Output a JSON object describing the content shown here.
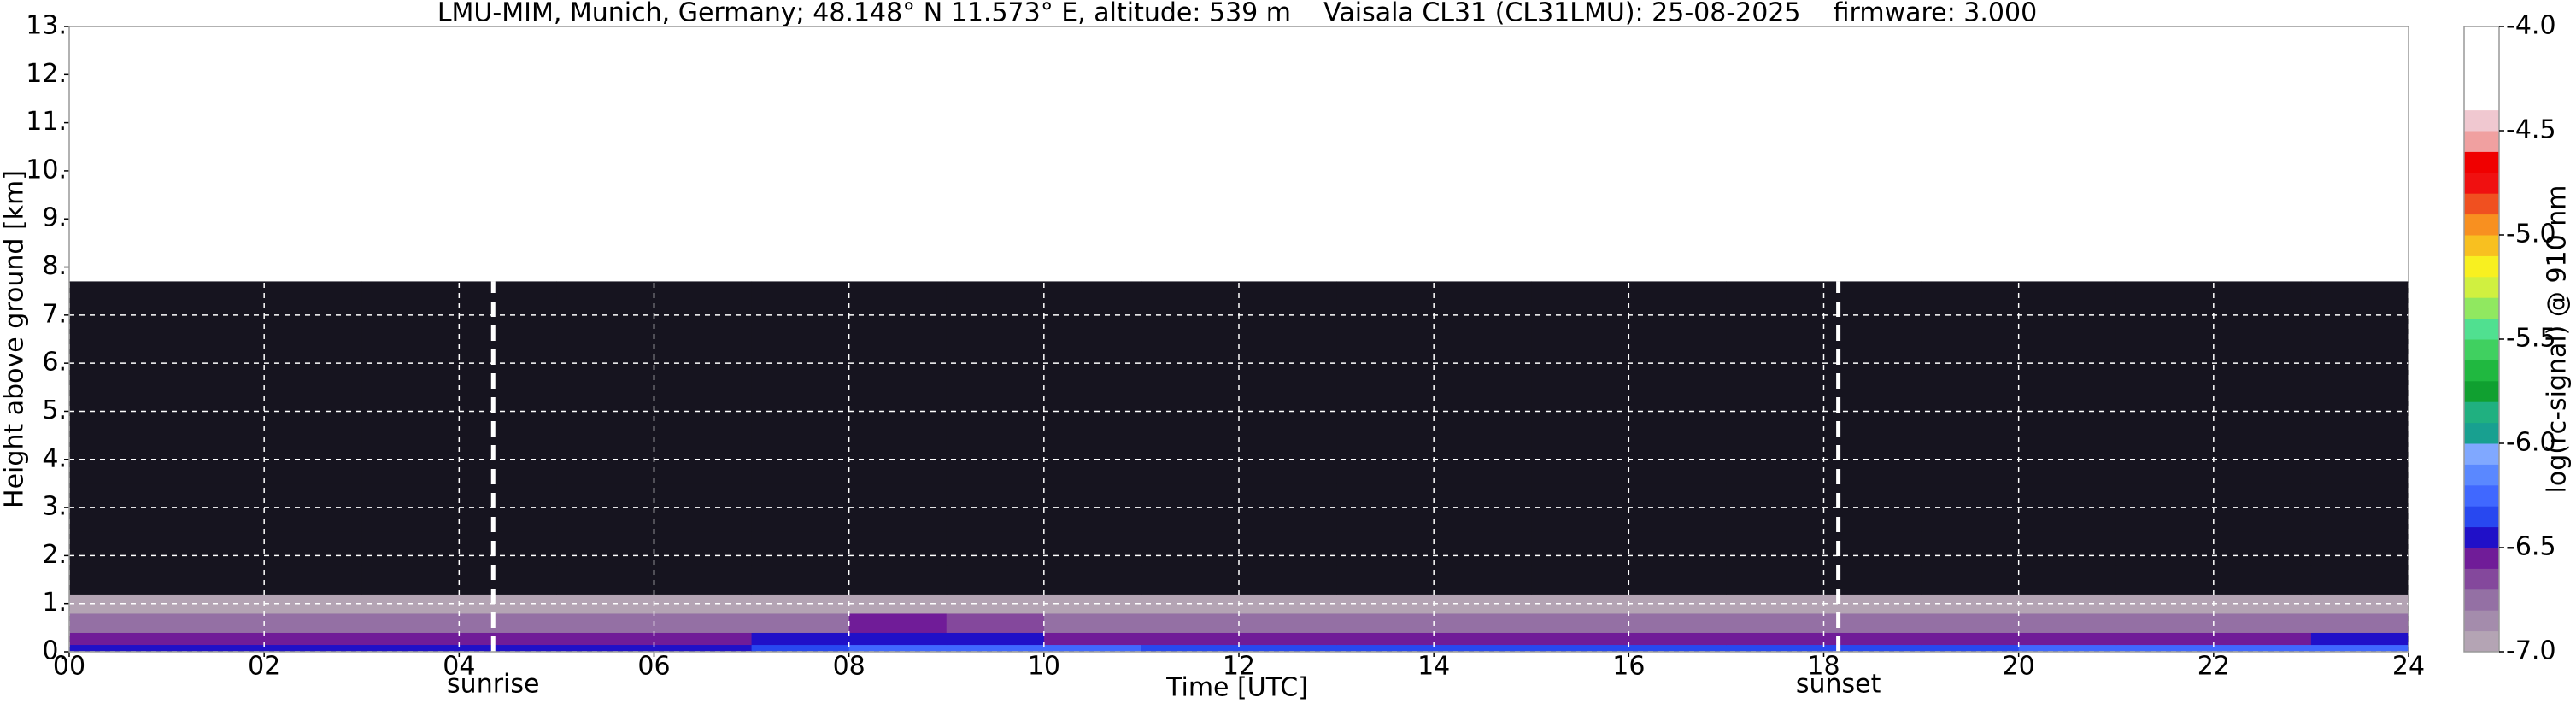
{
  "chart_data": {
    "type": "heatmap",
    "title": "LMU-MIM, Munich, Germany; 48.148° N 11.573° E, altitude: 539 m    Vaisala CL31 (CL31LMU): 25-08-2025    firmware: 3.000",
    "xlabel": "Time [UTC]",
    "ylabel": "Height above ground [km]",
    "colorbar_label": "log(rc-signal) @ 910 nm",
    "x_edges": [
      0,
      1,
      2,
      3,
      4,
      5,
      6,
      7,
      8,
      9,
      10,
      11,
      12,
      13,
      14,
      15,
      16,
      17,
      18,
      19,
      20,
      21,
      22,
      23,
      24
    ],
    "y_edges": [
      0,
      0.15,
      0.4,
      0.8,
      1.2,
      1.8,
      2.5,
      3.5,
      5,
      7.7
    ],
    "z": [
      [
        -6.4,
        -6.4,
        -6.4,
        -6.4,
        -6.4,
        -6.4,
        -6.4,
        -6.35,
        -6.2,
        -6.25,
        -6.3,
        -6.35,
        -6.35,
        -6.35,
        -6.35,
        -6.35,
        -6.35,
        -6.35,
        -6.35,
        -6.35,
        -6.3,
        -6.3,
        -6.3,
        -6.25
      ],
      [
        -6.55,
        -6.55,
        -6.55,
        -6.55,
        -6.55,
        -6.55,
        -6.55,
        -6.5,
        -6.45,
        -6.5,
        -6.55,
        -6.55,
        -6.55,
        -6.55,
        -6.55,
        -6.55,
        -6.55,
        -6.55,
        -6.55,
        -6.55,
        -6.55,
        -6.55,
        -6.55,
        -6.5
      ],
      [
        -6.7,
        -6.7,
        -6.7,
        -6.7,
        -6.7,
        -6.7,
        -6.7,
        -6.7,
        -6.6,
        -6.65,
        -6.7,
        -6.7,
        -6.7,
        -6.7,
        -6.7,
        -6.7,
        -6.7,
        -6.7,
        -6.7,
        -6.7,
        -6.7,
        -6.7,
        -6.7,
        -6.7
      ],
      [
        -6.95,
        -6.95,
        -6.95,
        -6.95,
        -6.95,
        -6.95,
        -6.95,
        -6.95,
        -6.9,
        -6.9,
        -6.9,
        -6.9,
        -6.9,
        -6.9,
        -6.9,
        -6.9,
        -6.9,
        -6.9,
        -6.95,
        -6.95,
        -6.95,
        -6.95,
        -6.95,
        -6.95
      ],
      [
        -7.05,
        -7.05,
        -7.05,
        -7.05,
        -7.05,
        -7.05,
        -7.05,
        -7.05,
        -7.05,
        -7.05,
        -7.05,
        -7.05,
        -7.05,
        -7.05,
        -7.05,
        -7.05,
        -7.05,
        -7.05,
        -7.05,
        -7.05,
        -7.05,
        -7.05,
        -7.05,
        -7.05
      ],
      [
        -7.1,
        -7.1,
        -7.1,
        -7.1,
        -7.1,
        -7.1,
        -7.1,
        -7.1,
        -7.1,
        -7.1,
        -7.1,
        -7.1,
        -7.1,
        -7.1,
        -7.1,
        -7.1,
        -7.1,
        -7.1,
        -7.1,
        -7.1,
        -7.1,
        -7.1,
        -7.1,
        -7.1
      ],
      [
        -7.1,
        -7.1,
        -7.1,
        -7.1,
        -7.1,
        -7.1,
        -7.1,
        -7.1,
        -7.1,
        -7.1,
        -7.1,
        -7.1,
        -7.1,
        -7.1,
        -7.1,
        -7.1,
        -7.1,
        -7.1,
        -7.1,
        -7.1,
        -7.1,
        -7.1,
        -7.1,
        -7.1
      ],
      [
        -7.1,
        -7.1,
        -7.1,
        -7.1,
        -7.1,
        -7.1,
        -7.1,
        -7.1,
        -7.1,
        -7.1,
        -7.1,
        -7.1,
        -7.1,
        -7.1,
        -7.1,
        -7.1,
        -7.1,
        -7.1,
        -7.1,
        -7.1,
        -7.1,
        -7.1,
        -7.1,
        -7.1
      ],
      [
        -7.1,
        -7.1,
        -7.1,
        -7.1,
        -7.1,
        -7.1,
        -7.1,
        -7.1,
        -7.1,
        -7.1,
        -7.1,
        -7.1,
        -7.1,
        -7.1,
        -7.1,
        -7.1,
        -7.1,
        -7.1,
        -7.1,
        -7.1,
        -7.1,
        -7.1,
        -7.1,
        -7.1
      ]
    ],
    "xlim": [
      0,
      24
    ],
    "ylim": [
      0,
      13
    ],
    "xticks": [
      {
        "value": 0,
        "label": "00"
      },
      {
        "value": 2,
        "label": "02"
      },
      {
        "value": 4,
        "label": "04"
      },
      {
        "value": 6,
        "label": "06"
      },
      {
        "value": 8,
        "label": "08"
      },
      10,
      12,
      14,
      16,
      18,
      20,
      22,
      24
    ],
    "yticks": [
      {
        "value": 0,
        "label": "0."
      },
      {
        "value": 1,
        "label": "1."
      },
      {
        "value": 2,
        "label": "2."
      },
      {
        "value": 3,
        "label": "3."
      },
      {
        "value": 4,
        "label": "4."
      },
      {
        "value": 5,
        "label": "5."
      },
      {
        "value": 6,
        "label": "6."
      },
      {
        "value": 7,
        "label": "7."
      },
      {
        "value": 8,
        "label": "8."
      },
      {
        "value": 9,
        "label": "9."
      },
      {
        "value": 10,
        "label": "10."
      },
      {
        "value": 11,
        "label": "11."
      },
      {
        "value": 12,
        "label": "12."
      },
      {
        "value": 13,
        "label": "13."
      }
    ],
    "clim": [
      -7,
      -4
    ],
    "cticks": [
      {
        "value": -7,
        "label": "-7.0"
      },
      -6.5,
      {
        "value": -6,
        "label": "-6.0"
      },
      -5.5,
      {
        "value": -5,
        "label": "-5.0"
      },
      -4.5,
      {
        "value": -4,
        "label": "-4.0"
      }
    ],
    "colors": [
      "#b4a4b4",
      "#a48cac",
      "#9470a4",
      "#84489c",
      "#701c98",
      "#2010c8",
      "#2848f0",
      "#4068ff",
      "#5a88ff",
      "#80a8ff",
      "#18a090",
      "#20b080",
      "#10a030",
      "#20b840",
      "#40d060",
      "#50e090",
      "#90e860",
      "#d0f040",
      "#f8f020",
      "#f8c020",
      "#f89020",
      "#f05020",
      "#f01010",
      "#f00000",
      "#f0a0a0",
      "#f0c8d0",
      "#ffffff",
      "#ffffff",
      "#ffffff",
      "#ffffff"
    ],
    "under_color": "#16141f",
    "grid": true,
    "annotations": [
      {
        "text": "sunrise",
        "x": 4.35
      },
      {
        "text": "sunset",
        "x": 18.15
      }
    ]
  }
}
